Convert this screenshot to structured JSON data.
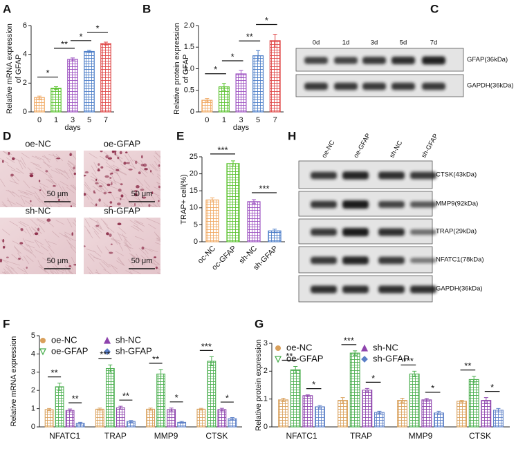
{
  "chart_data": [
    {
      "panel": "A",
      "type": "bar",
      "ylabel": [
        "Relative mRNA expression",
        "of GFAP"
      ],
      "xlabel": "days",
      "categories": [
        "0",
        "1",
        "3",
        "5",
        "7"
      ],
      "values": [
        1.0,
        1.65,
        3.65,
        4.2,
        4.75
      ],
      "errors": [
        0.1,
        0.1,
        0.1,
        0.08,
        0.1
      ],
      "colors": [
        "#f0a860",
        "#5cc330",
        "#9b4fc0",
        "#4a7cc7",
        "#e04848"
      ],
      "ylim": [
        0,
        6
      ],
      "yticks": [
        0,
        2,
        4,
        6
      ],
      "significance": [
        "*",
        "**",
        "*",
        "*"
      ]
    },
    {
      "panel": "B",
      "type": "bar",
      "ylabel": [
        "Relative protein expression",
        "of GFAP"
      ],
      "xlabel": "days",
      "categories": [
        "0",
        "1",
        "3",
        "5",
        "7"
      ],
      "values": [
        0.27,
        0.58,
        0.88,
        1.3,
        1.65
      ],
      "errors": [
        0.04,
        0.08,
        0.08,
        0.12,
        0.15
      ],
      "colors": [
        "#f0a860",
        "#5cc330",
        "#9b4fc0",
        "#4a7cc7",
        "#e04848"
      ],
      "ylim": [
        0,
        2
      ],
      "yticks": [
        0,
        0.5,
        {
          "value": 1,
          "label": "1.0"
        },
        1.5,
        {
          "value": 2,
          "label": "2.0"
        }
      ],
      "significance": [
        "*",
        "*",
        "**",
        "*"
      ]
    },
    {
      "panel": "E",
      "type": "bar",
      "ylabel": [
        "TRAP+ cell(%)"
      ],
      "categories": [
        "oc-NC",
        "oc-GFAP",
        "sh-NC",
        "sh-GFAP"
      ],
      "values": [
        12.3,
        23,
        11.8,
        3.2
      ],
      "errors": [
        0.6,
        0.8,
        0.6,
        0.5
      ],
      "colors": [
        "#f0a860",
        "#5cc330",
        "#9b4fc0",
        "#4a7cc7"
      ],
      "ylim": [
        0,
        25
      ],
      "yticks": [
        0,
        5,
        10,
        15,
        20,
        25
      ],
      "significance": [
        "***",
        "***"
      ]
    },
    {
      "panel": "F",
      "type": "grouped_bar",
      "ylabel": [
        "Relative mRNA expression"
      ],
      "categories": [
        "NFATC1",
        "TRAP",
        "MMP9",
        "CTSK"
      ],
      "series": [
        {
          "name": "oe-NC",
          "color": "#d9a05b",
          "marker": "circle",
          "values": [
            0.95,
            0.97,
            0.97,
            0.97
          ],
          "errors": [
            0.06,
            0.06,
            0.06,
            0.05
          ]
        },
        {
          "name": "oe-GFAP",
          "color": "#4caf50",
          "marker": "triangle-down",
          "values": [
            2.2,
            3.2,
            2.9,
            3.6
          ],
          "errors": [
            0.2,
            0.2,
            0.25,
            0.25
          ]
        },
        {
          "name": "sh-NC",
          "color": "#8e44ad",
          "marker": "triangle-up",
          "values": [
            0.9,
            1.05,
            0.95,
            0.95
          ],
          "errors": [
            0.08,
            0.08,
            0.08,
            0.07
          ]
        },
        {
          "name": "sh-GFAP",
          "color": "#5b7fc7",
          "marker": "diamond",
          "values": [
            0.2,
            0.3,
            0.25,
            0.45
          ],
          "errors": [
            0.05,
            0.05,
            0.05,
            0.06
          ]
        }
      ],
      "ylim": [
        0,
        5
      ],
      "yticks": [
        0,
        1,
        2,
        3,
        4,
        5
      ],
      "significance": [
        [
          "**",
          "**"
        ],
        [
          "***",
          "**"
        ],
        [
          "**",
          "*"
        ],
        [
          "***",
          "*"
        ]
      ]
    },
    {
      "panel": "G",
      "type": "grouped_bar",
      "ylabel": [
        "Relative protein expression"
      ],
      "categories": [
        "NFATC1",
        "TRAP",
        "MMP9",
        "CTSK"
      ],
      "series": [
        {
          "name": "oe-NC",
          "color": "#d9a05b",
          "marker": "circle",
          "values": [
            0.97,
            0.95,
            0.95,
            0.92
          ],
          "errors": [
            0.06,
            0.1,
            0.08,
            0.03
          ]
        },
        {
          "name": "oe-GFAP",
          "color": "#4caf50",
          "marker": "triangle-down",
          "values": [
            2.05,
            2.65,
            1.9,
            1.7
          ],
          "errors": [
            0.12,
            0.08,
            0.1,
            0.12
          ]
        },
        {
          "name": "sh-NC",
          "color": "#8e44ad",
          "marker": "triangle-up",
          "values": [
            1.12,
            1.32,
            0.97,
            0.95
          ],
          "errors": [
            0.03,
            0.06,
            0.05,
            0.1
          ]
        },
        {
          "name": "sh-GFAP",
          "color": "#5b7fc7",
          "marker": "diamond",
          "values": [
            0.72,
            0.52,
            0.5,
            0.6
          ],
          "errors": [
            0.05,
            0.04,
            0.06,
            0.06
          ]
        }
      ],
      "ylim": [
        0,
        3
      ],
      "yticks": [
        0,
        1,
        2,
        3
      ],
      "significance": [
        [
          "**",
          "*"
        ],
        [
          "***",
          "*"
        ],
        [
          "***",
          "*"
        ],
        [
          "**",
          "*"
        ]
      ]
    }
  ],
  "blot_c": {
    "panel": "C",
    "lanes": [
      "0d",
      "1d",
      "3d",
      "5d",
      "7d"
    ],
    "rows": [
      "GFAP(36kDa)",
      "GAPDH(36kDa)"
    ]
  },
  "micrographs": {
    "panel": "D",
    "images": [
      {
        "label": "oe-NC",
        "scale_bar": "50 μm"
      },
      {
        "label": "oe-GFAP",
        "scale_bar": "50 μm"
      },
      {
        "label": "sh-NC",
        "scale_bar": "50 μm"
      },
      {
        "label": "sh-GFAP",
        "scale_bar": "50 μm"
      }
    ]
  },
  "blot_h": {
    "panel": "H",
    "lanes": [
      "oe-NC",
      "oe-GFAP",
      "sh-NC",
      "sh-GFAP"
    ],
    "rows": [
      "CTSK(43kDa)",
      "MMP9(92kDa)",
      "TRAP(29kDa)",
      "NFATC1(78kDa)",
      "GAPDH(36kDa)"
    ]
  }
}
